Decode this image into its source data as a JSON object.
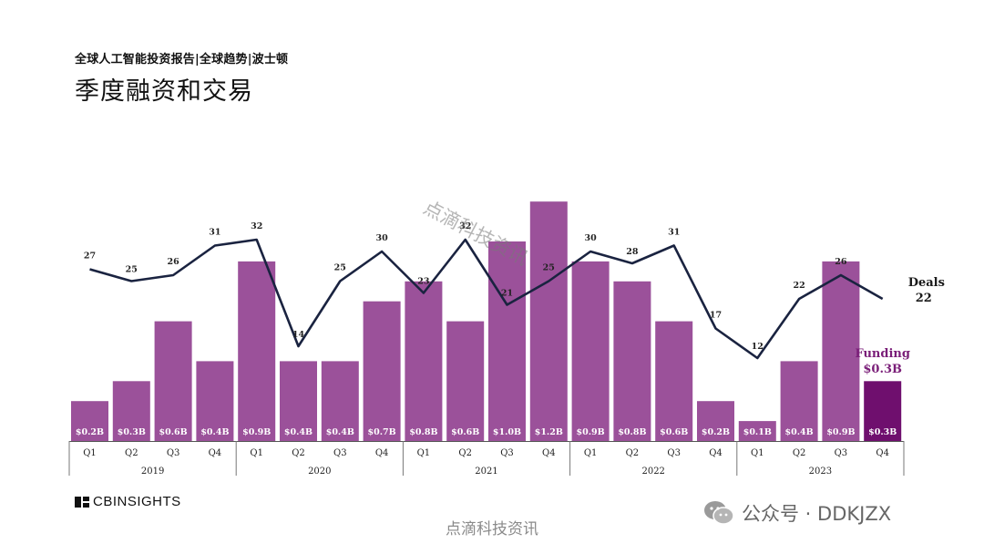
{
  "header": {
    "subtitle": "全球人工智能投资报告|全球趋势|波士顿",
    "title": "季度融资和交易"
  },
  "chart_data": {
    "type": "bar",
    "title": "季度融资和交易",
    "categories": [
      "Q1",
      "Q2",
      "Q3",
      "Q4",
      "Q1",
      "Q2",
      "Q3",
      "Q4",
      "Q1",
      "Q2",
      "Q3",
      "Q4",
      "Q1",
      "Q2",
      "Q3",
      "Q4",
      "Q1",
      "Q2",
      "Q3",
      "Q4"
    ],
    "years": [
      "2019",
      "2020",
      "2021",
      "2022",
      "2023"
    ],
    "series": [
      {
        "name": "Funding",
        "type": "bar",
        "values": [
          0.2,
          0.3,
          0.6,
          0.4,
          0.9,
          0.4,
          0.4,
          0.7,
          0.8,
          0.6,
          1.0,
          1.2,
          0.9,
          0.8,
          0.6,
          0.2,
          0.1,
          0.4,
          0.9,
          0.3
        ],
        "labels": [
          "$0.2B",
          "$0.3B",
          "$0.6B",
          "$0.4B",
          "$0.9B",
          "$0.4B",
          "$0.4B",
          "$0.7B",
          "$0.8B",
          "$0.6B",
          "$1.0B",
          "$1.2B",
          "$0.9B",
          "$0.8B",
          "$0.6B",
          "$0.2B",
          "$0.1B",
          "$0.4B",
          "$0.9B",
          "$0.3B"
        ]
      },
      {
        "name": "Deals",
        "type": "line",
        "values": [
          27,
          25,
          26,
          31,
          32,
          14,
          25,
          30,
          23,
          32,
          21,
          25,
          30,
          28,
          31,
          17,
          12,
          22,
          26,
          22
        ]
      }
    ],
    "annotations": {
      "deals_label": "Deals",
      "deals_value": "22",
      "funding_label": "Funding",
      "funding_value": "$0.3B"
    },
    "colors": {
      "bar": "#9b519a",
      "bar_highlight": "#6f0f6e",
      "line": "#1a2340",
      "funding_annotation": "#7a1e78"
    }
  },
  "watermark": {
    "diagonal": "点滴科技资讯",
    "bottom": "点滴科技资讯"
  },
  "footer": {
    "logo_text": "CBINSIGHTS",
    "wechat_text": "公众号 · DDKJZX"
  }
}
